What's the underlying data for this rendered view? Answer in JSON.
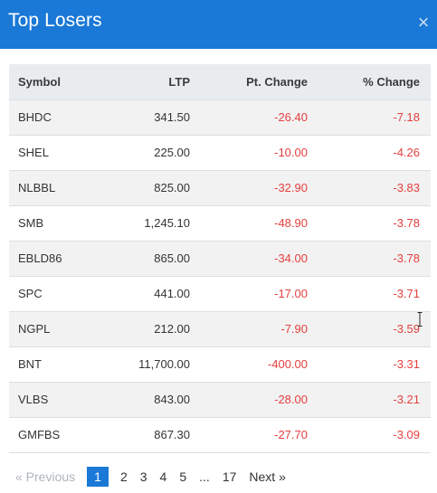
{
  "header": {
    "title": "Top Losers",
    "close_glyph": "×"
  },
  "table": {
    "columns": {
      "symbol": "Symbol",
      "ltp": "LTP",
      "pt_change": "Pt. Change",
      "pct_change": "% Change"
    },
    "rows": [
      {
        "symbol": "BHDC",
        "ltp": "341.50",
        "pt_change": "-26.40",
        "pct_change": "-7.18"
      },
      {
        "symbol": "SHEL",
        "ltp": "225.00",
        "pt_change": "-10.00",
        "pct_change": "-4.26"
      },
      {
        "symbol": "NLBBL",
        "ltp": "825.00",
        "pt_change": "-32.90",
        "pct_change": "-3.83"
      },
      {
        "symbol": "SMB",
        "ltp": "1,245.10",
        "pt_change": "-48.90",
        "pct_change": "-3.78"
      },
      {
        "symbol": "EBLD86",
        "ltp": "865.00",
        "pt_change": "-34.00",
        "pct_change": "-3.78"
      },
      {
        "symbol": "SPC",
        "ltp": "441.00",
        "pt_change": "-17.00",
        "pct_change": "-3.71"
      },
      {
        "symbol": "NGPL",
        "ltp": "212.00",
        "pt_change": "-7.90",
        "pct_change": "-3.59"
      },
      {
        "symbol": "BNT",
        "ltp": "11,700.00",
        "pt_change": "-400.00",
        "pct_change": "-3.31"
      },
      {
        "symbol": "VLBS",
        "ltp": "843.00",
        "pt_change": "-28.00",
        "pct_change": "-3.21"
      },
      {
        "symbol": "GMFBS",
        "ltp": "867.30",
        "pt_change": "-27.70",
        "pct_change": "-3.09"
      }
    ]
  },
  "pagination": {
    "previous": "« Previous",
    "pages": [
      "1",
      "2",
      "3",
      "4",
      "5"
    ],
    "active_page": "1",
    "ellipsis": "...",
    "last_page": "17",
    "next": "Next »"
  },
  "colors": {
    "header_bg": "#1a78d6",
    "negative": "#e43f3f",
    "active_page_bg": "#1a78d6"
  }
}
